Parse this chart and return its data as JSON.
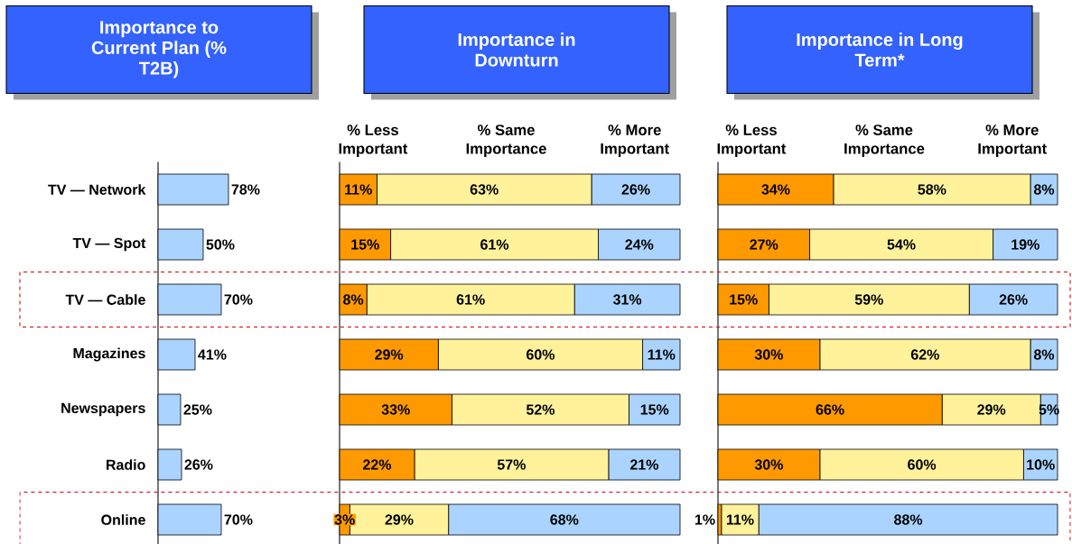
{
  "chart_data": [
    {
      "type": "bar",
      "orientation": "horizontal",
      "title": "Importance to Current Plan (% T2B)",
      "categories": [
        "TV — Network",
        "TV — Spot",
        "TV — Cable",
        "Magazines",
        "Newspapers",
        "Radio",
        "Online"
      ],
      "values": [
        78,
        50,
        70,
        41,
        25,
        26,
        70
      ],
      "value_labels": [
        "78%",
        "50%",
        "70%",
        "41%",
        "25%",
        "26%",
        "70%"
      ],
      "color": "#aad4ff"
    },
    {
      "type": "bar",
      "orientation": "horizontal",
      "stacked": true,
      "title": "Importance in Downturn",
      "categories": [
        null,
        null,
        null,
        null,
        null,
        null,
        null
      ],
      "legend": "top",
      "series": [
        {
          "name": "% Less Important",
          "color": "#ff9900",
          "values": [
            11,
            15,
            8,
            29,
            33,
            22,
            3
          ],
          "value_labels": [
            "11%",
            "15%",
            "8%",
            "29%",
            "33%",
            "22%",
            "3%"
          ]
        },
        {
          "name": "% Same Importance",
          "color": "#fff29a",
          "values": [
            63,
            61,
            61,
            60,
            52,
            57,
            29
          ],
          "value_labels": [
            "63%",
            "61%",
            "61%",
            "60%",
            "52%",
            "57%",
            "29%"
          ]
        },
        {
          "name": "% More Important",
          "color": "#aad4ff",
          "values": [
            26,
            24,
            31,
            11,
            15,
            21,
            68
          ],
          "value_labels": [
            "26%",
            "24%",
            "31%",
            "11%",
            "15%",
            "21%",
            "68%"
          ]
        }
      ]
    },
    {
      "type": "bar",
      "orientation": "horizontal",
      "stacked": true,
      "title": "Importance in Long Term*",
      "categories": [
        null,
        null,
        null,
        null,
        null,
        null,
        null
      ],
      "legend": "top",
      "series": [
        {
          "name": "% Less Important",
          "color": "#ff9900",
          "values": [
            34,
            27,
            15,
            30,
            66,
            30,
            1
          ],
          "value_labels": [
            "34%",
            "27%",
            "15%",
            "30%",
            "66%",
            "30%",
            "1%"
          ]
        },
        {
          "name": "% Same Importance",
          "color": "#fff29a",
          "values": [
            58,
            54,
            59,
            62,
            29,
            60,
            11
          ],
          "value_labels": [
            "58%",
            "54%",
            "59%",
            "62%",
            "29%",
            "60%",
            "11%"
          ]
        },
        {
          "name": "% More Important",
          "color": "#aad4ff",
          "values": [
            8,
            19,
            26,
            8,
            5,
            10,
            88
          ],
          "value_labels": [
            "8%",
            "19%",
            "26%",
            "8%",
            "5%",
            "10%",
            "88%"
          ]
        }
      ]
    }
  ]
}
